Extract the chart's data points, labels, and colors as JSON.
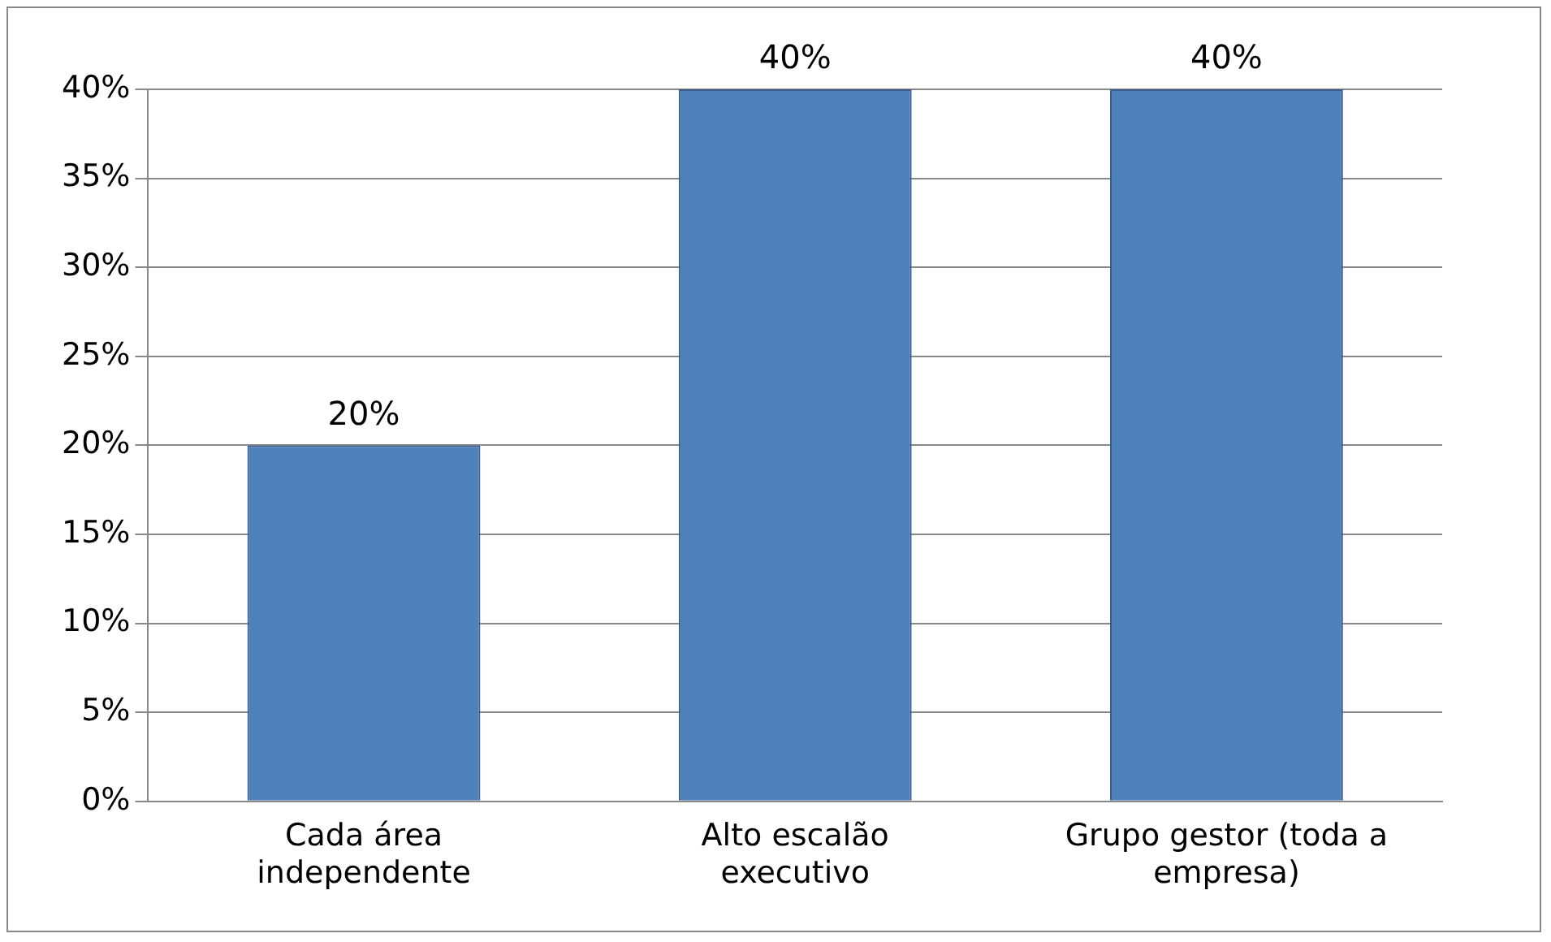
{
  "chart_data": {
    "type": "bar",
    "categories": [
      "Cada área independente",
      "Alto escalão executivo",
      "Grupo gestor (toda a empresa)"
    ],
    "values": [
      20,
      40,
      40
    ],
    "color": "#4f81bd",
    "value_labels": [
      "20%",
      "40%",
      "40%"
    ],
    "ylim": [
      0,
      40
    ],
    "yticks": [
      {
        "value": 0,
        "label": "0%"
      },
      {
        "value": 5,
        "label": "5%"
      },
      {
        "value": 10,
        "label": "10%"
      },
      {
        "value": 15,
        "label": "15%"
      },
      {
        "value": 20,
        "label": "20%"
      },
      {
        "value": 25,
        "label": "25%"
      },
      {
        "value": 30,
        "label": "30%"
      },
      {
        "value": 35,
        "label": "35%"
      },
      {
        "value": 40,
        "label": "40%"
      }
    ],
    "grid": "y",
    "legend": false
  }
}
